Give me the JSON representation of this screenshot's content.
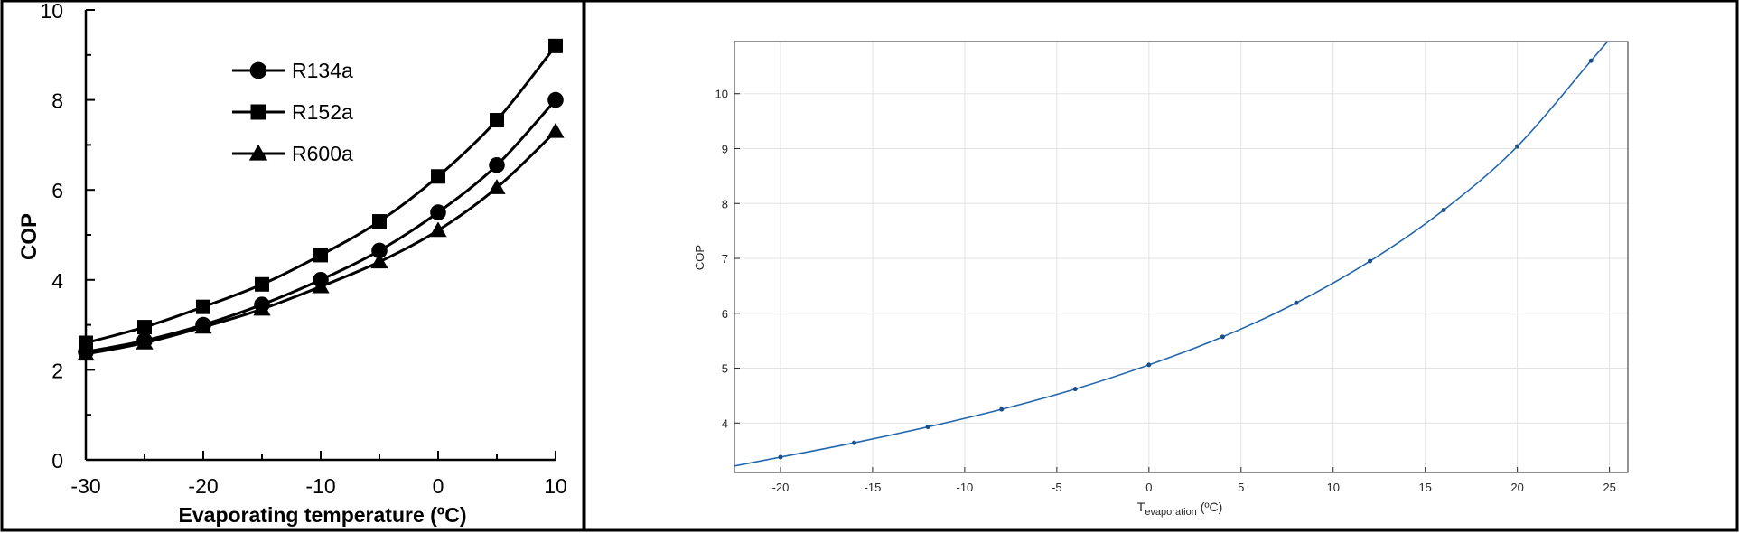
{
  "chart_data": [
    {
      "type": "line",
      "xlabel": "Evaporating temperature (ºC)",
      "ylabel": "COP",
      "xlim": [
        -30,
        10
      ],
      "ylim": [
        0,
        10
      ],
      "x_ticks": [
        "-30",
        "-20",
        "-10",
        "0",
        "10"
      ],
      "y_ticks": [
        "0",
        "2",
        "4",
        "6",
        "8",
        "10"
      ],
      "grid": false,
      "legend_position": "top-left",
      "x": [
        -30,
        -25,
        -20,
        -15,
        -10,
        -5,
        0,
        5,
        10
      ],
      "series": [
        {
          "name": "R134a",
          "marker": "circle",
          "values": [
            2.4,
            2.65,
            3.0,
            3.45,
            4.0,
            4.65,
            5.5,
            6.55,
            8.0
          ]
        },
        {
          "name": "R152a",
          "marker": "square",
          "values": [
            2.6,
            2.95,
            3.4,
            3.9,
            4.55,
            5.3,
            6.3,
            7.55,
            9.2
          ]
        },
        {
          "name": "R600a",
          "marker": "triangle",
          "values": [
            2.35,
            2.6,
            2.95,
            3.35,
            3.85,
            4.4,
            5.1,
            6.05,
            7.3
          ]
        }
      ],
      "colors": {
        "line": "#000000"
      }
    },
    {
      "type": "line",
      "xlabel_main": "T",
      "xlabel_sub": "evaporation",
      "xlabel_unit": " (ºC)",
      "ylabel": "COP",
      "xlim": [
        -22.5,
        26
      ],
      "ylim": [
        3.1,
        10.95
      ],
      "x_ticks": [
        "-20",
        "-15",
        "-10",
        "-5",
        "0",
        "5",
        "10",
        "15",
        "20",
        "25"
      ],
      "y_ticks": [
        "4",
        "5",
        "6",
        "7",
        "8",
        "9",
        "10"
      ],
      "grid": true,
      "x": [
        -20,
        -16,
        -12,
        -8,
        -4,
        0,
        4,
        8,
        12,
        16,
        20,
        24
      ],
      "series": [
        {
          "values": [
            3.38,
            3.64,
            3.93,
            4.25,
            4.62,
            5.06,
            5.57,
            6.19,
            6.95,
            7.88,
            9.04,
            10.6
          ]
        }
      ],
      "colors": {
        "line": "#2166ac",
        "grid": "#e3e3e3",
        "axis": "#262626"
      }
    }
  ]
}
